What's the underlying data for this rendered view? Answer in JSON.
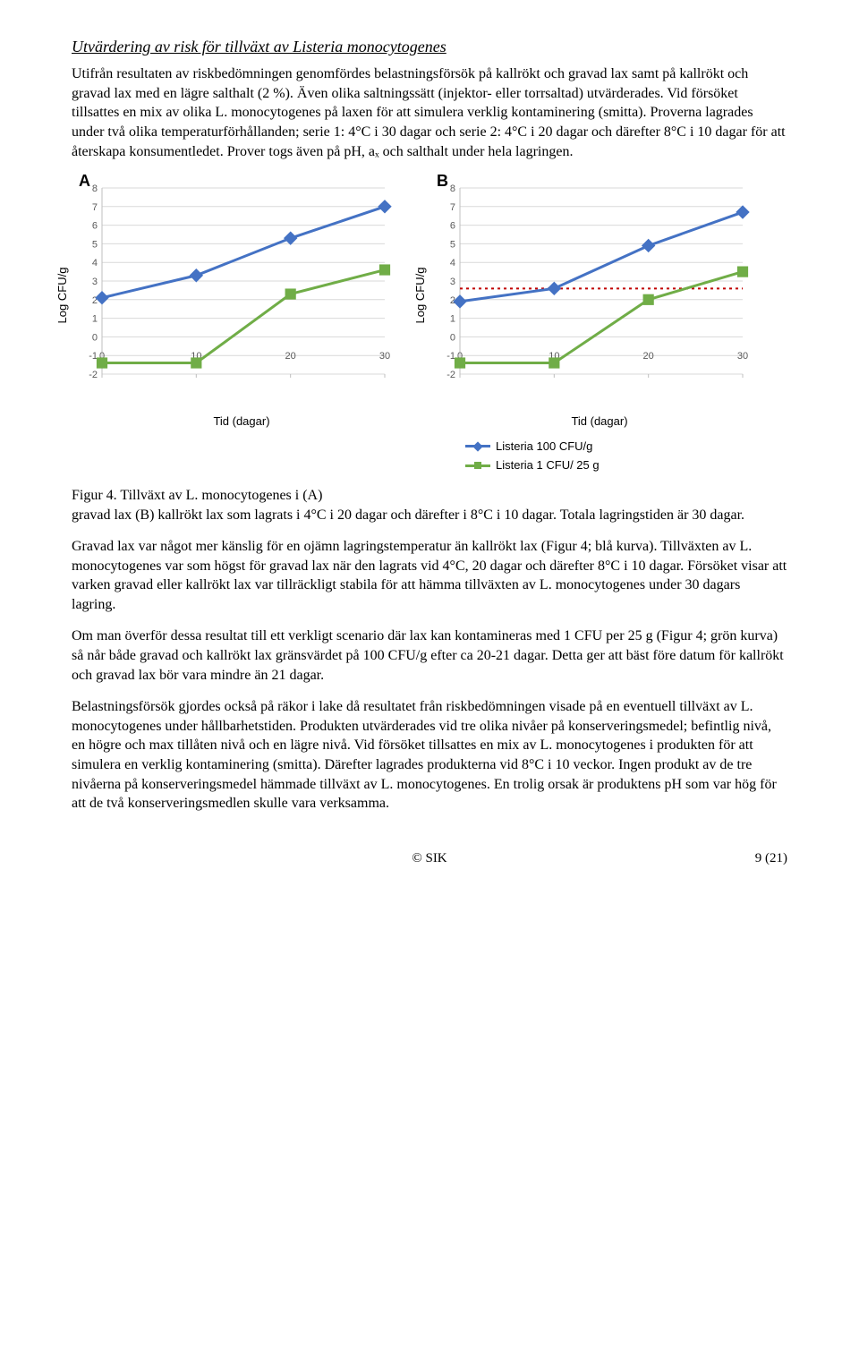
{
  "section_title": "Utvärdering av risk för tillväxt av Listeria monocytogenes",
  "paragraph_1": "Utifrån resultaten av riskbedömningen genomfördes belastningsförsök på kallrökt och gravad lax samt på kallrökt och gravad lax med en lägre salthalt (2 %). Även olika saltningssätt (injektor- eller torrsaltad) utvärderades. Vid försöket tillsattes en mix av olika L. monocytogenes på laxen för att simulera verklig kontaminering (smitta). Proverna lagrades under två olika temperaturförhållanden; serie 1: 4°C i 30 dagar och serie 2: 4°C i 20 dagar och därefter 8°C i 10 dagar för att återskapa konsumentledet. Prover togs även på pH, aₓ och salthalt under hela lagringen.",
  "caption_lead": "Figur 4. Tillväxt av L. monocytogenes i (A)",
  "caption_rest": "gravad lax (B) kallrökt lax som lagrats i 4°C i 20 dagar och därefter i 8°C i 10 dagar. Totala lagringstiden är 30 dagar.",
  "paragraph_2": "Gravad lax var något mer känslig för en ojämn lagringstemperatur än kallrökt lax (Figur 4; blå kurva). Tillväxten av L. monocytogenes var som högst för gravad lax när den lagrats vid 4°C, 20 dagar och därefter 8°C i 10 dagar. Försöket visar att varken gravad eller kallrökt lax var tillräckligt stabila för att hämma tillväxten av L. monocytogenes under 30 dagars lagring.",
  "paragraph_3": "Om man överför dessa resultat till ett verkligt scenario där lax kan kontamineras med 1 CFU per 25 g (Figur 4; grön kurva) så når både gravad och kallrökt lax gränsvärdet på 100 CFU/g efter ca 20-21 dagar. Detta ger att bäst före datum för kallrökt och gravad lax bör vara mindre än 21 dagar.",
  "paragraph_4": "Belastningsförsök gjordes också på räkor i lake då resultatet från riskbedömningen visade på en eventuell tillväxt av L. monocytogenes under hållbarhetstiden. Produkten utvärderades vid tre olika nivåer på konserveringsmedel; befintlig nivå, en högre och max tillåten nivå och en lägre nivå. Vid försöket tillsattes en mix av L. monocytogenes i produkten för att simulera en verklig kontaminering (smitta). Därefter lagrades produkterna vid 8°C i 10 veckor. Ingen produkt av de tre nivåerna på konserveringsmedel hämmade tillväxt av L. monocytogenes. En trolig orsak är produktens pH som var hög för att de två konserveringsmedlen skulle vara verksamma.",
  "legend": {
    "series1": "Listeria 100 CFU/g",
    "series2": "Listeria 1 CFU/ 25 g"
  },
  "chart_A": {
    "type": "line",
    "label": "A",
    "x": [
      0,
      10,
      20,
      30
    ],
    "series_blue": {
      "y": [
        2.1,
        3.3,
        5.3,
        7.0
      ],
      "color": "#4472c4",
      "marker": "diamond"
    },
    "series_green": {
      "y": [
        -1.4,
        -1.4,
        2.3,
        3.6
      ],
      "color": "#70ad47",
      "marker": "square"
    },
    "ylim": [
      -2,
      8
    ],
    "ytick_step": 1,
    "xlim": [
      0,
      30
    ],
    "xtick_step": 10,
    "grid_color": "#d9d9d9",
    "axis_color": "#bfbfbf",
    "line_width": 3,
    "marker_size": 7,
    "xlabel": "Tid (dagar)",
    "ylabel": "Log CFU/g",
    "reference_line": null
  },
  "chart_B": {
    "type": "line",
    "label": "B",
    "x": [
      0,
      10,
      20,
      30
    ],
    "series_blue": {
      "y": [
        1.9,
        2.6,
        4.9,
        6.7
      ],
      "color": "#4472c4",
      "marker": "diamond"
    },
    "series_green": {
      "y": [
        -1.4,
        -1.4,
        2.0,
        3.5
      ],
      "color": "#70ad47",
      "marker": "square"
    },
    "ylim": [
      -2,
      8
    ],
    "ytick_step": 1,
    "xlim": [
      0,
      30
    ],
    "xtick_step": 10,
    "grid_color": "#d9d9d9",
    "axis_color": "#bfbfbf",
    "line_width": 3,
    "marker_size": 7,
    "xlabel": "Tid (dagar)",
    "ylabel": "Log CFU/g",
    "reference_line": {
      "y": 2.6,
      "color": "#c00000",
      "dash": "3,4",
      "width": 2
    }
  },
  "footer_center": "© SIK",
  "footer_right": "9 (21)"
}
